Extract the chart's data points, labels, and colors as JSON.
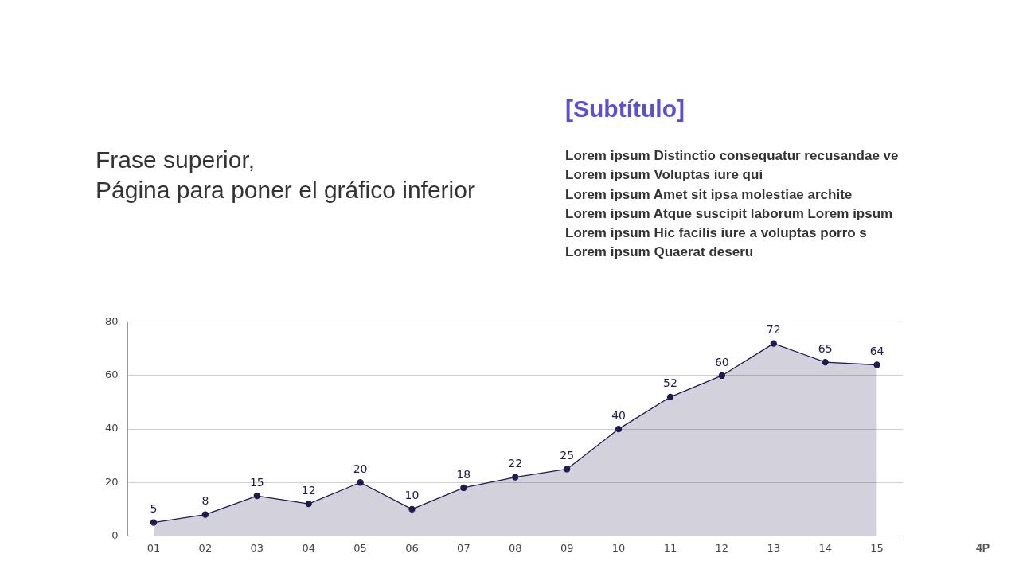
{
  "chart_data": {
    "type": "area",
    "title": "Frase superior,\nPágina para poner el gráfico inferior",
    "subtitle": "[Subtítulo]",
    "annotations": [
      "Lorem ipsum Distinctio consequatur recusandae ve\nLorem ipsum Voluptas iure qui\nLorem ipsum Amet sit ipsa molestiae archite\nLorem ipsum Atque suscipit laborum Lorem ipsum\nLorem ipsum Hic facilis iure a voluptas porro s\nLorem ipsum Quaerat deseru",
      "4P"
    ],
    "categories": [
      "01",
      "02",
      "03",
      "04",
      "05",
      "06",
      "07",
      "08",
      "09",
      "10",
      "11",
      "12",
      "13",
      "14",
      "15"
    ],
    "series": [
      {
        "color": "#1e1b4f",
        "values": [
          5,
          8,
          15,
          12,
          20,
          10,
          18,
          22,
          25,
          40,
          52,
          60,
          72,
          65,
          64
        ]
      }
    ],
    "ylim": [
      0,
      80
    ],
    "yticks": [
      0,
      20,
      40,
      60,
      80
    ],
    "grid": "y",
    "marker": "circle",
    "line_style": "solid",
    "data_labels": true,
    "legend": false
  }
}
